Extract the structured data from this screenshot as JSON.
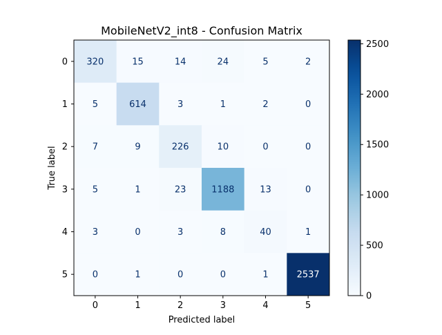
{
  "chart_data": {
    "type": "heatmap",
    "title": "MobileNetV2_int8 - Confusion Matrix",
    "xlabel": "Predicted label",
    "ylabel": "True label",
    "x_tick_labels": [
      "0",
      "1",
      "2",
      "3",
      "4",
      "5"
    ],
    "y_tick_labels": [
      "0",
      "1",
      "2",
      "3",
      "4",
      "5"
    ],
    "matrix": [
      [
        320,
        15,
        14,
        24,
        5,
        2
      ],
      [
        5,
        614,
        3,
        1,
        2,
        0
      ],
      [
        7,
        9,
        226,
        10,
        0,
        0
      ],
      [
        5,
        1,
        23,
        1188,
        13,
        0
      ],
      [
        3,
        0,
        3,
        8,
        40,
        1
      ],
      [
        0,
        1,
        0,
        0,
        1,
        2537
      ]
    ],
    "colormap": "Blues",
    "color_range": [
      0,
      2537
    ],
    "colorbar": {
      "ticks": [
        0,
        500,
        1000,
        1500,
        2000,
        2500
      ]
    }
  }
}
